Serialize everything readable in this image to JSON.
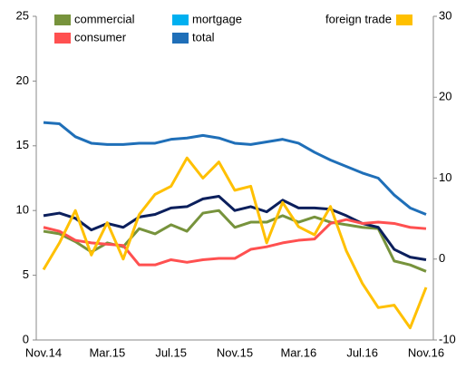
{
  "chart_data": {
    "type": "line",
    "categories": [
      "Nov.14",
      null,
      null,
      null,
      "Mar.15",
      null,
      null,
      null,
      "Jul.15",
      null,
      null,
      null,
      "Nov.15",
      null,
      null,
      null,
      "Mar.16",
      null,
      null,
      null,
      "Jul.16",
      null,
      null,
      null,
      "Nov.16"
    ],
    "ylim": [
      0,
      25
    ],
    "yticks": [
      0,
      5,
      10,
      15,
      20,
      25
    ],
    "y2lim": [
      -10,
      30
    ],
    "y2ticks": [
      -10,
      0,
      10,
      20,
      30
    ],
    "series": [
      {
        "name": "commercial",
        "color": "#77933c",
        "values": [
          8.4,
          8.2,
          7.6,
          6.8,
          7.5,
          7.2,
          8.6,
          8.2,
          8.9,
          8.4,
          9.8,
          10.0,
          8.7,
          9.1,
          9.1,
          9.6,
          9.1,
          9.5,
          9.1,
          8.9,
          8.7,
          8.6,
          6.1,
          5.8,
          5.3
        ]
      },
      {
        "name": "mortgage",
        "color": "#0b1f5c",
        "legend_color": "#00b0f0",
        "values": [
          9.6,
          9.8,
          9.4,
          8.5,
          9.0,
          8.7,
          9.5,
          9.7,
          10.2,
          10.3,
          10.9,
          11.1,
          10.0,
          10.3,
          9.9,
          10.8,
          10.2,
          10.2,
          10.1,
          9.6,
          9.0,
          8.7,
          7.0,
          6.4,
          6.2
        ]
      },
      {
        "name": "consumer",
        "color": "#ff5050",
        "values": [
          8.7,
          8.4,
          7.7,
          7.5,
          7.4,
          7.3,
          5.8,
          5.8,
          6.2,
          6.0,
          6.2,
          6.3,
          6.3,
          7.0,
          7.2,
          7.5,
          7.7,
          7.8,
          9.0,
          9.3,
          9.0,
          9.1,
          9.0,
          8.7,
          8.6
        ]
      },
      {
        "name": "total",
        "color": "#1f6fb8",
        "values": [
          16.8,
          16.7,
          15.7,
          15.2,
          15.1,
          15.1,
          15.2,
          15.2,
          15.5,
          15.6,
          15.8,
          15.6,
          15.2,
          15.1,
          15.3,
          15.5,
          15.2,
          14.5,
          13.9,
          13.4,
          12.9,
          12.5,
          11.2,
          10.2,
          9.7
        ]
      },
      {
        "name": "foreign trade",
        "color": "#ffc000",
        "axis": "y2",
        "values": [
          -1.3,
          2,
          6,
          0.5,
          4.5,
          0,
          5.5,
          8,
          9,
          12.5,
          10,
          12,
          8.5,
          9,
          2,
          7,
          4,
          3,
          6.5,
          1,
          -3,
          -6,
          -5.7,
          -8.5,
          -3.5
        ]
      }
    ]
  }
}
